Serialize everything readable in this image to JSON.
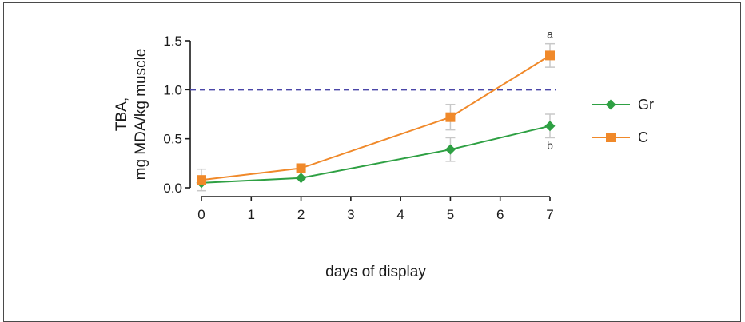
{
  "chart_data": {
    "type": "line",
    "title": "",
    "xlabel": "days of display",
    "ylabel_line1": "TBA,",
    "ylabel_line2": "mg MDA/kg muscle",
    "xlim": [
      0,
      7
    ],
    "ylim": [
      0,
      1.5
    ],
    "x_ticks": [
      0,
      1,
      2,
      3,
      4,
      5,
      6,
      7
    ],
    "y_ticks": [
      0.0,
      0.5,
      1.0,
      1.5
    ],
    "y_tick_labels": [
      "0.0",
      "0.5",
      "1.0",
      "1.5"
    ],
    "reference_line": {
      "y": 1.0,
      "style": "dashed",
      "color": "#4a46a8"
    },
    "grid": false,
    "legend_position": "right",
    "series": [
      {
        "name": "Gr",
        "marker": "diamond",
        "color": "#2ea043",
        "x": [
          0,
          2,
          5,
          7
        ],
        "y": [
          0.05,
          0.1,
          0.39,
          0.63
        ],
        "err": [
          0.01,
          0.01,
          0.12,
          0.12
        ]
      },
      {
        "name": "C",
        "marker": "square",
        "color": "#f0892a",
        "x": [
          0,
          2,
          5,
          7
        ],
        "y": [
          0.08,
          0.2,
          0.72,
          1.35
        ],
        "err": [
          0.11,
          0.02,
          0.13,
          0.12
        ]
      }
    ],
    "annotations": [
      {
        "text": "a",
        "x": 7,
        "y": 1.53
      },
      {
        "text": "b",
        "x": 7,
        "y": 0.39
      }
    ]
  }
}
